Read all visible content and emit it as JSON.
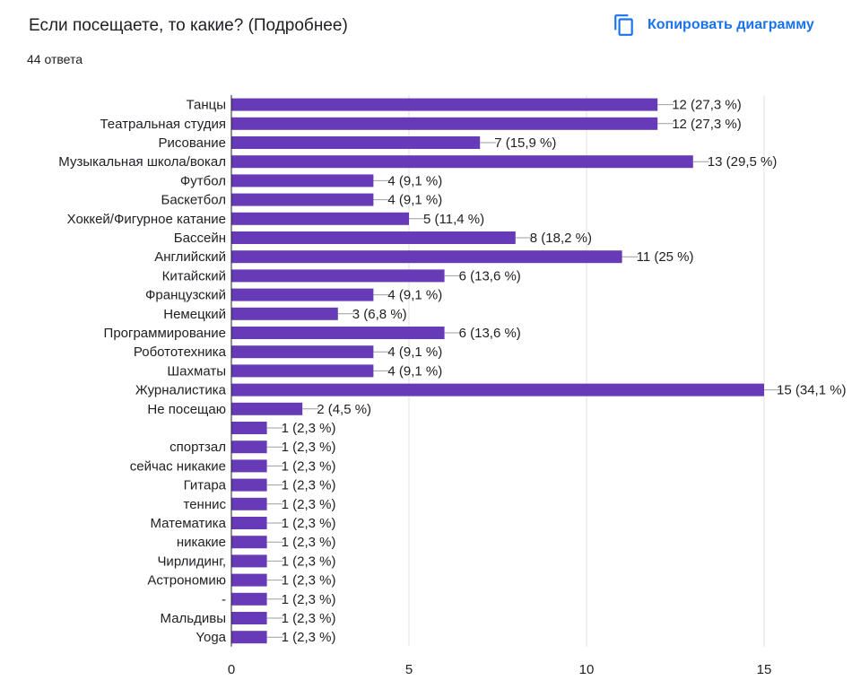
{
  "header": {
    "title": "Если посещаете, то какие? (Подробнее)",
    "response_count": "44 ответа",
    "copy_button_label": "Копировать диаграмму",
    "copy_icon": "copy-icon"
  },
  "colors": {
    "bar": "#673ab7",
    "accent": "#1a73e8",
    "grid": "#e0e0e0",
    "axis": "#202124"
  },
  "chart_data": {
    "type": "bar",
    "orientation": "horizontal",
    "title": "Если посещаете, то какие? (Подробнее)",
    "xlabel": "",
    "ylabel": "",
    "xlim": [
      0,
      15
    ],
    "xticks": [
      0,
      5,
      10,
      15
    ],
    "grid": true,
    "categories": [
      "Танцы",
      "Театральная студия",
      "Рисование",
      "Музыкальная школа/вокал",
      "Футбол",
      "Баскетбол",
      "Хоккей/Фигурное катание",
      "Бассейн",
      "Английский",
      "Китайский",
      "Французский",
      "Немецкий",
      "Программирование",
      "Робототехника",
      "Шахматы",
      "Журналистика",
      "Не посещаю",
      "",
      "спортзал",
      "сейчас никакие",
      "Гитара",
      "теннис",
      "Математика",
      "никакие",
      "Чирлидинг,",
      "Астрономию",
      "-",
      "Мальдивы",
      "Yoga"
    ],
    "values": [
      12,
      12,
      7,
      13,
      4,
      4,
      5,
      8,
      11,
      6,
      4,
      3,
      6,
      4,
      4,
      15,
      2,
      1,
      1,
      1,
      1,
      1,
      1,
      1,
      1,
      1,
      1,
      1,
      1
    ],
    "data_labels": [
      "12 (27,3 %)",
      "12 (27,3 %)",
      "7 (15,9 %)",
      "13 (29,5 %)",
      "4 (9,1 %)",
      "4 (9,1 %)",
      "5 (11,4 %)",
      "8 (18,2 %)",
      "11 (25 %)",
      "6 (13,6 %)",
      "4 (9,1 %)",
      "3 (6,8 %)",
      "6 (13,6 %)",
      "4 (9,1 %)",
      "4 (9,1 %)",
      "15 (34,1 %)",
      "2 (4,5 %)",
      "1 (2,3 %)",
      "1 (2,3 %)",
      "1 (2,3 %)",
      "1 (2,3 %)",
      "1 (2,3 %)",
      "1 (2,3 %)",
      "1 (2,3 %)",
      "1 (2,3 %)",
      "1 (2,3 %)",
      "1 (2,3 %)",
      "1 (2,3 %)",
      "1 (2,3 %)"
    ]
  }
}
